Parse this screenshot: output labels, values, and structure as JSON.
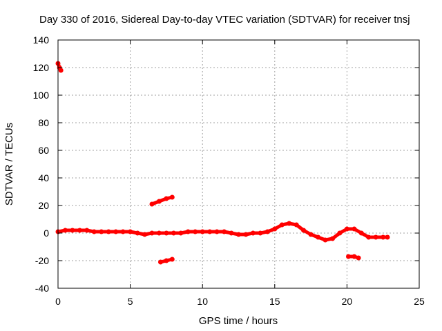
{
  "chart_data": {
    "type": "scatter",
    "title": "Day 330 of 2016, Sidereal Day-to-day VTEC variation (SDTVAR) for receiver tnsj",
    "xlabel": "GPS time / hours",
    "ylabel": "SDTVAR / TECUs",
    "xlim": [
      0,
      25
    ],
    "ylim": [
      -40,
      140
    ],
    "xticks": [
      0,
      5,
      10,
      15,
      20,
      25
    ],
    "yticks": [
      -40,
      -20,
      0,
      20,
      40,
      60,
      80,
      100,
      120,
      140
    ],
    "grid": true,
    "marker_color": "#ff0000",
    "series": [
      {
        "name": "outlier-start",
        "x": [
          0.0,
          0.1,
          0.2
        ],
        "y": [
          123,
          120,
          118
        ]
      },
      {
        "name": "main-trace",
        "x": [
          0.0,
          0.5,
          1.0,
          1.5,
          2.0,
          2.5,
          3.0,
          3.5,
          4.0,
          4.5,
          5.0,
          5.5,
          6.0,
          6.5,
          7.0,
          7.5,
          8.0,
          8.5,
          9.0,
          9.5,
          10.0,
          10.5,
          11.0,
          11.5,
          12.0,
          12.5,
          13.0,
          13.5,
          14.0,
          14.5,
          15.0,
          15.5,
          16.0,
          16.5,
          17.0,
          17.5,
          18.0,
          18.5,
          19.0,
          19.5,
          20.0,
          20.5,
          21.0,
          21.5,
          22.0,
          22.5,
          22.8
        ],
        "y": [
          1,
          2,
          2,
          2,
          2,
          1,
          1,
          1,
          1,
          1,
          1,
          0,
          -1,
          0,
          0,
          0,
          0,
          0,
          1,
          1,
          1,
          1,
          1,
          1,
          0,
          -1,
          -1,
          0,
          0,
          1,
          3,
          6,
          7,
          6,
          2,
          -1,
          -3,
          -5,
          -4,
          0,
          3,
          3,
          0,
          -3,
          -3,
          -3,
          -3
        ]
      },
      {
        "name": "upper-segment",
        "x": [
          6.5,
          7.0,
          7.5,
          7.9
        ],
        "y": [
          21,
          23,
          25,
          26
        ]
      },
      {
        "name": "lower-segment",
        "x": [
          7.1,
          7.5,
          7.9
        ],
        "y": [
          -21,
          -20,
          -19
        ]
      },
      {
        "name": "lower-segment-2",
        "x": [
          20.1,
          20.5,
          20.8
        ],
        "y": [
          -17,
          -17,
          -18
        ]
      }
    ]
  }
}
